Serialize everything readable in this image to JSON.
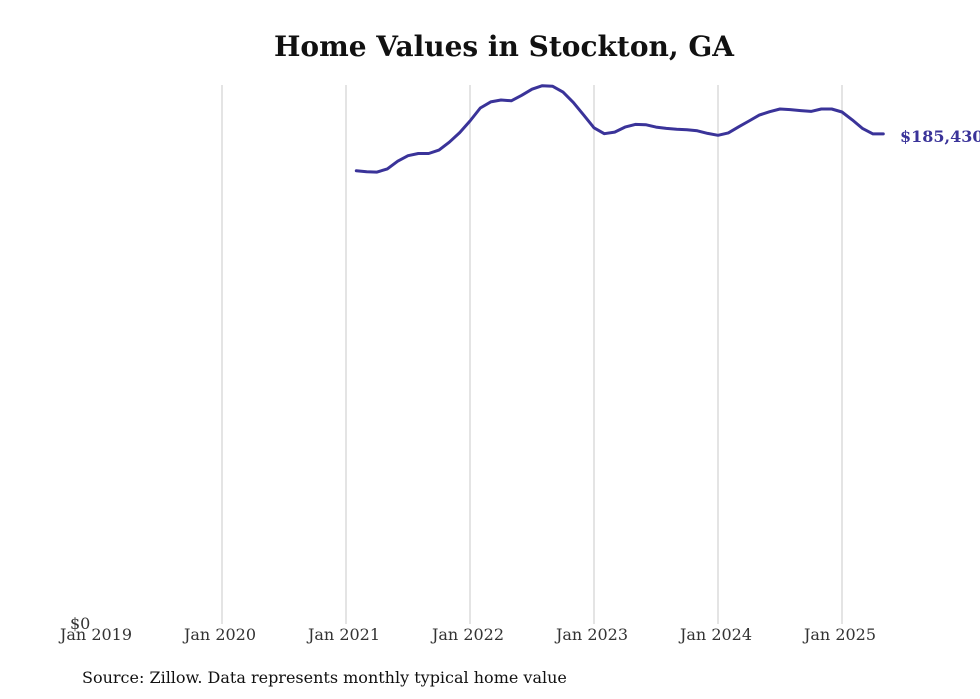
{
  "chart_data": {
    "type": "line",
    "title": "Home Values in Stockton, GA",
    "xlabel": "",
    "ylabel": "",
    "x_tick_labels": [
      "Jan 2019",
      "Jan 2020",
      "Jan 2021",
      "Jan 2022",
      "Jan 2023",
      "Jan 2024",
      "Jan 2025"
    ],
    "y_tick_labels": [
      "$0"
    ],
    "ylim": [
      0,
      203500
    ],
    "xlim": [
      "2019-01",
      "2025-12"
    ],
    "grid": {
      "vertical": true,
      "horizontal": false
    },
    "end_label": "$185,430",
    "line_color": "#3a3399",
    "grid_color": "#c8c8c8",
    "series": [
      {
        "x": [
          "2021-02",
          "2021-03",
          "2021-04",
          "2021-05",
          "2021-06",
          "2021-07",
          "2021-08",
          "2021-09",
          "2021-10",
          "2021-11",
          "2021-12",
          "2022-01",
          "2022-02",
          "2022-03",
          "2022-04",
          "2022-05",
          "2022-06",
          "2022-07",
          "2022-08",
          "2022-09",
          "2022-10",
          "2022-11",
          "2022-12",
          "2023-01",
          "2023-02",
          "2023-03",
          "2023-04",
          "2023-05",
          "2023-06",
          "2023-07",
          "2023-08",
          "2023-09",
          "2023-10",
          "2023-11",
          "2023-12",
          "2024-01",
          "2024-02",
          "2024-03",
          "2024-04",
          "2024-05",
          "2024-06",
          "2024-07",
          "2024-08",
          "2024-09",
          "2024-10",
          "2024-11",
          "2024-12",
          "2025-01",
          "2025-02",
          "2025-03",
          "2025-04",
          "2025-05"
        ],
        "values": [
          171500,
          171100,
          171000,
          172200,
          175100,
          177200,
          178000,
          178000,
          179300,
          182300,
          185900,
          190300,
          195200,
          197500,
          198200,
          197900,
          200000,
          202300,
          203600,
          203400,
          201200,
          197300,
          192500,
          187700,
          185500,
          186100,
          188000,
          189000,
          188900,
          188000,
          187500,
          187200,
          187000,
          186600,
          185600,
          184900,
          185800,
          188100,
          190300,
          192500,
          193800,
          194800,
          194600,
          194200,
          193900,
          194800,
          194800,
          193700,
          190700,
          187400,
          185430,
          185430
        ]
      }
    ]
  },
  "source": "Source: Zillow. Data represents monthly typical home value"
}
